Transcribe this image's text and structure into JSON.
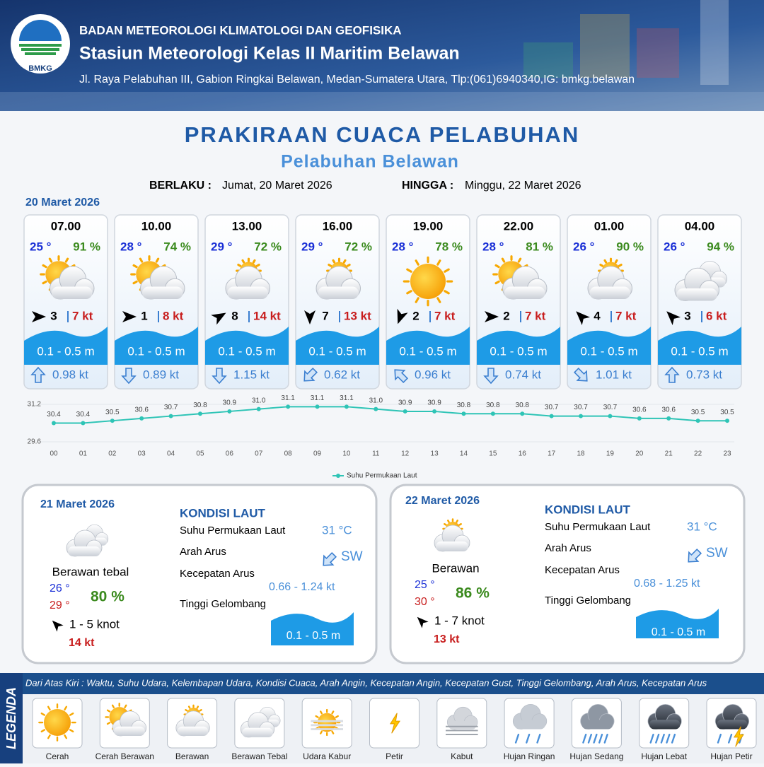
{
  "header": {
    "logo_text": "BMKG",
    "organization": "BADAN METEOROLOGI KLIMATOLOGI DAN GEOFISIKA",
    "station": "Stasiun Meteorologi Kelas II Maritim Belawan",
    "address": "Jl. Raya Pelabuhan III, Gabion Ringkai Belawan, Medan-Sumatera Utara, Tlp:(061)6940340,IG: bmkg.belawan"
  },
  "title": "PRAKIRAAN CUACA PELABUHAN",
  "subtitle": "Pelabuhan Belawan",
  "validity": {
    "from_label": "BERLAKU :",
    "from": "Jumat, 20 Maret 2026",
    "to_label": "HINGGA :",
    "to": "Minggu, 22 Maret 2026"
  },
  "day1": {
    "date": "20 Maret 2026",
    "forecasts": [
      {
        "time": "07.00",
        "temp": "25 °",
        "humidity": "91 %",
        "condition": "Cerah Berawan",
        "wind_arrow_deg": 90,
        "wind_speed": "3",
        "gust": "7 kt",
        "wave": "0.1 - 0.5 m",
        "current_arrow_deg": 0,
        "current_speed": "0.98 kt"
      },
      {
        "time": "10.00",
        "temp": "28 °",
        "humidity": "74 %",
        "condition": "Cerah Berawan",
        "wind_arrow_deg": 90,
        "wind_speed": "1",
        "gust": "8 kt",
        "wave": "0.1 - 0.5 m",
        "current_arrow_deg": 180,
        "current_speed": "0.89 kt"
      },
      {
        "time": "13.00",
        "temp": "29 °",
        "humidity": "72 %",
        "condition": "Berawan",
        "wind_arrow_deg": 60,
        "wind_speed": "8",
        "gust": "14 kt",
        "wave": "0.1 - 0.5 m",
        "current_arrow_deg": 180,
        "current_speed": "1.15 kt"
      },
      {
        "time": "16.00",
        "temp": "29 °",
        "humidity": "72 %",
        "condition": "Berawan",
        "wind_arrow_deg": 180,
        "wind_speed": "7",
        "gust": "13 kt",
        "wave": "0.1 - 0.5 m",
        "current_arrow_deg": 225,
        "current_speed": "0.62 kt"
      },
      {
        "time": "19.00",
        "temp": "28 °",
        "humidity": "78 %",
        "condition": "Cerah",
        "wind_arrow_deg": 200,
        "wind_speed": "2",
        "gust": "7 kt",
        "wave": "0.1 - 0.5 m",
        "current_arrow_deg": 315,
        "current_speed": "0.96 kt"
      },
      {
        "time": "22.00",
        "temp": "28 °",
        "humidity": "81 %",
        "condition": "Cerah Berawan",
        "wind_arrow_deg": 90,
        "wind_speed": "2",
        "gust": "7 kt",
        "wave": "0.1 - 0.5 m",
        "current_arrow_deg": 180,
        "current_speed": "0.74 kt"
      },
      {
        "time": "01.00",
        "temp": "26 °",
        "humidity": "90 %",
        "condition": "Berawan",
        "wind_arrow_deg": 315,
        "wind_speed": "4",
        "gust": "7 kt",
        "wave": "0.1 - 0.5 m",
        "current_arrow_deg": 135,
        "current_speed": "1.01 kt"
      },
      {
        "time": "04.00",
        "temp": "26 °",
        "humidity": "94 %",
        "condition": "Berawan Tebal",
        "wind_arrow_deg": 315,
        "wind_speed": "3",
        "gust": "6 kt",
        "wave": "0.1 - 0.5 m",
        "current_arrow_deg": 0,
        "current_speed": "0.73 kt"
      }
    ]
  },
  "chart_data": {
    "type": "line",
    "categories": [
      "00",
      "01",
      "02",
      "03",
      "04",
      "05",
      "06",
      "07",
      "08",
      "09",
      "10",
      "11",
      "12",
      "13",
      "14",
      "15",
      "16",
      "17",
      "18",
      "19",
      "20",
      "21",
      "22",
      "23"
    ],
    "series": [
      {
        "name": "Suhu Permukaan Laut",
        "color": "#2ec4b6",
        "values": [
          30.4,
          30.4,
          30.5,
          30.6,
          30.7,
          30.8,
          30.9,
          31.0,
          31.1,
          31.1,
          31.1,
          31.0,
          30.9,
          30.9,
          30.8,
          30.8,
          30.8,
          30.7,
          30.7,
          30.7,
          30.6,
          30.6,
          30.5,
          30.5
        ],
        "value_labels": [
          "30.4",
          "30.4",
          "30.5",
          "30.6",
          "30.7",
          "30.8",
          "30.9",
          "31.0",
          "31.1",
          "31.1",
          "31.1",
          "31.0",
          "30.9",
          "30.9",
          "30.8",
          "30.8",
          "30.8",
          "30.7",
          "30.7",
          "30.7",
          "30.6",
          "30.6",
          "30.5",
          "30.5"
        ]
      }
    ],
    "ylim": [
      29.6,
      31.2
    ],
    "yticks": [
      29.6,
      31.2
    ],
    "grid": true,
    "legend": "bottom"
  },
  "days": [
    {
      "date": "21 Maret 2026",
      "condition": "Berawan tebal",
      "temp_min": "26 °",
      "temp_max": "29 °",
      "humidity": "80 %",
      "wind_arrow_deg": 315,
      "wind": "1 - 5 knot",
      "gust": "14 kt",
      "sea_heading": "KONDISI LAUT",
      "sst_label": "Suhu Permukaan Laut",
      "sst": "31 °C",
      "current_dir_label": "Arah Arus",
      "current_arrow_deg": 225,
      "current_dir": "SW",
      "current_speed_label": "Kecepatan Arus",
      "current_speed": "0.66 - 1.24 kt",
      "wave_label": "Tinggi Gelombang",
      "wave": "0.1 - 0.5 m"
    },
    {
      "date": "22 Maret 2026",
      "condition": "Berawan",
      "temp_min": "25 °",
      "temp_max": "30 °",
      "humidity": "86 %",
      "wind_arrow_deg": 315,
      "wind": "1 - 7 knot",
      "gust": "13 kt",
      "sea_heading": "KONDISI LAUT",
      "sst_label": "Suhu Permukaan Laut",
      "sst": "31 °C",
      "current_dir_label": "Arah Arus",
      "current_arrow_deg": 225,
      "current_dir": "SW",
      "current_speed_label": "Kecepatan Arus",
      "current_speed": "0.68  - 1.25 kt",
      "wave_label": "Tinggi Gelombang",
      "wave": "0.1 - 0.5 m"
    }
  ],
  "legend": {
    "title": "LEGENDA",
    "description": "Dari Atas Kiri : Waktu, Suhu Udara, Kelembapan Udara, Kondisi Cuaca, Arah Angin, Kecepatan Angin, Kecepatan Gust, Tinggi Gelombang, Arah Arus, Kecepatan Arus",
    "items": [
      "Cerah",
      "Cerah Berawan",
      "Berawan",
      "Berawan Tebal",
      "Udara Kabur",
      "Petir",
      "Kabut",
      "Hujan Ringan",
      "Hujan Sedang",
      "Hujan Lebat",
      "Hujan Petir"
    ]
  }
}
